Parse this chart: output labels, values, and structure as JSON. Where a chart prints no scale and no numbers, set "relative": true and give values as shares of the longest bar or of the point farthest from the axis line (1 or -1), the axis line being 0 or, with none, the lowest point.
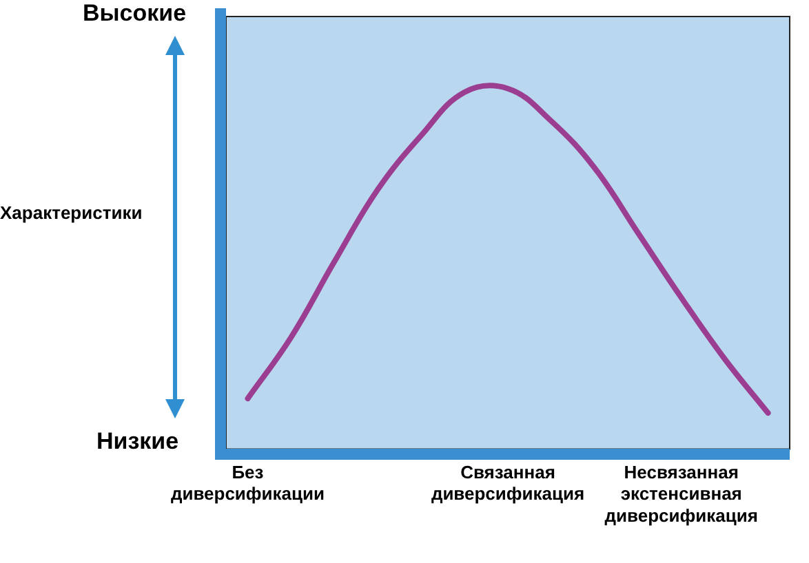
{
  "chart_data": {
    "type": "line",
    "relative": true,
    "ylabel": "Характеристики",
    "annotations": [
      "Высокие",
      "Низкие"
    ],
    "categories": [
      "Без диверсификации",
      null,
      null,
      null,
      null,
      null,
      "Связанная диверсификация",
      null,
      null,
      null,
      "Несвязанная экстенсивная диверсификация",
      null,
      null
    ],
    "series": [
      {
        "color": "#9b3d91",
        "values": [
          0.14,
          0.31,
          0.52,
          0.72,
          0.87,
          0.99,
          1,
          0.91,
          0.78,
          0.6,
          0.42,
          0.25,
          0.1
        ]
      }
    ],
    "grid": false,
    "legend": false,
    "marker": "none",
    "line_style": "solid"
  }
}
